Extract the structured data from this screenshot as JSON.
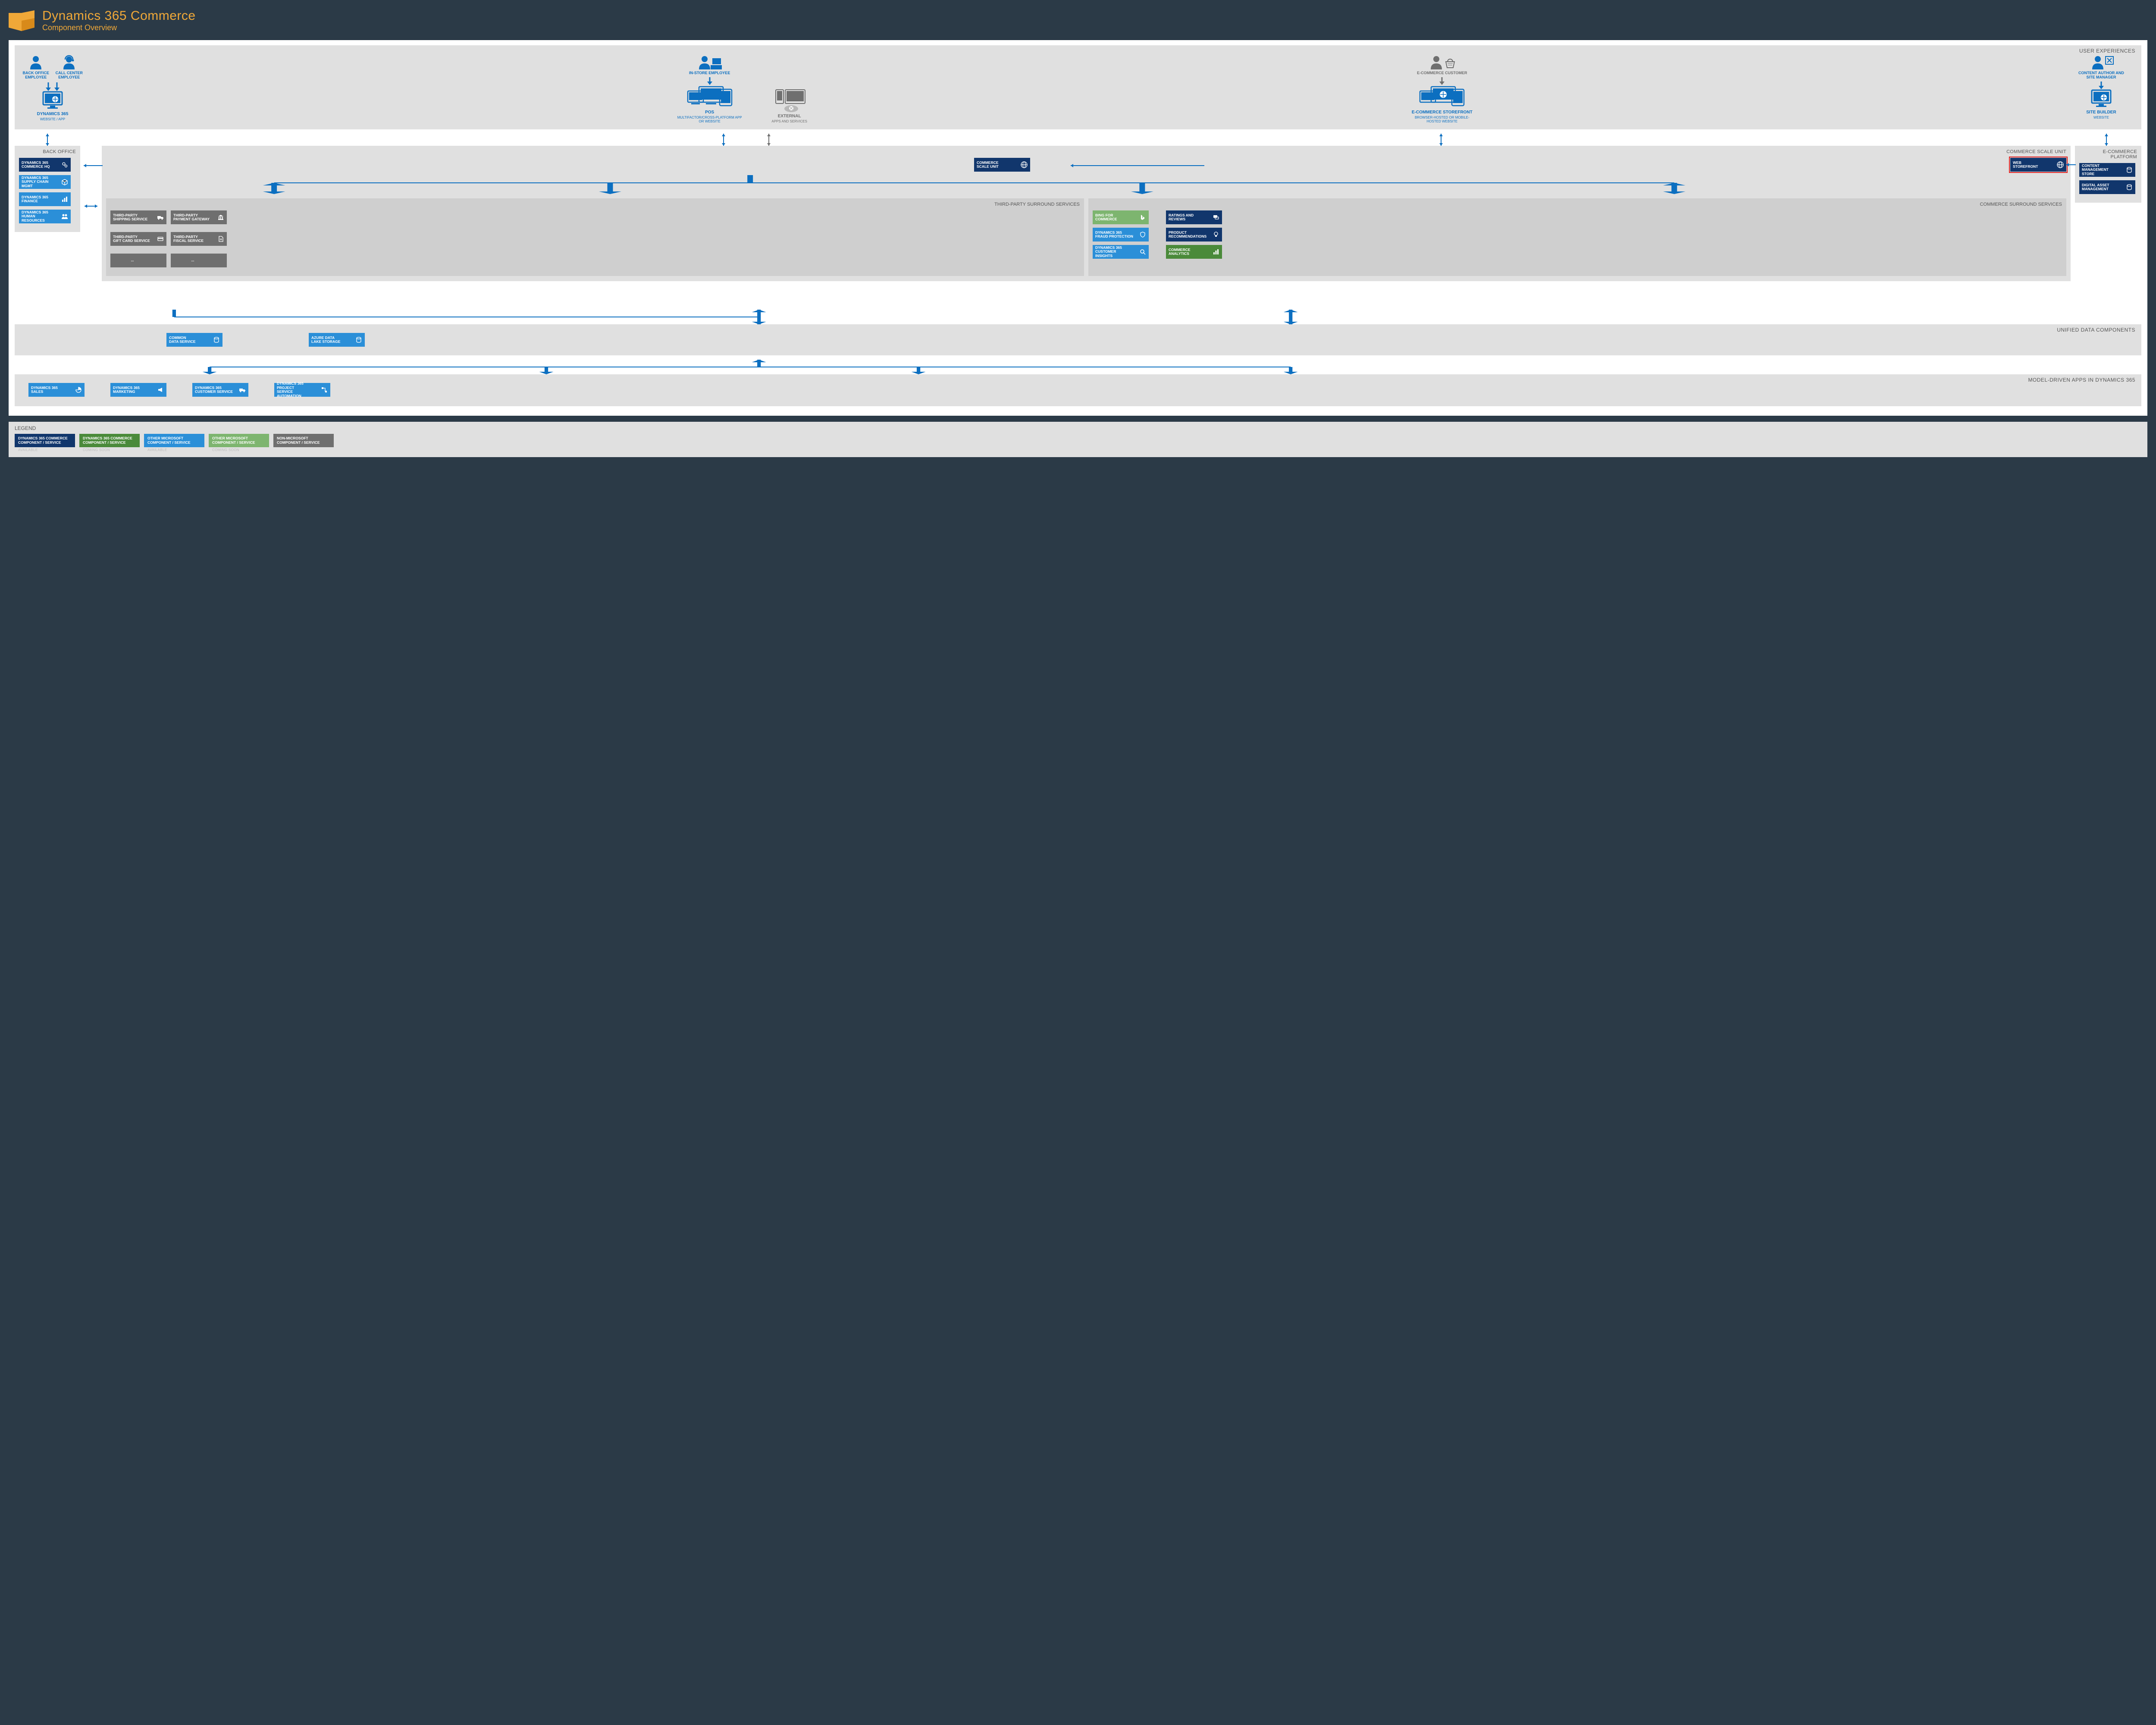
{
  "colors": {
    "page_bg": "#2b3a47",
    "canvas_bg": "#ffffff",
    "section_bg": "#e0e0e0",
    "subsection_bg": "#cfcfcf",
    "title": "#f0a838",
    "brand_blue": "#0c6fc0",
    "persona_gray": "#6f6f6f",
    "card_navy": "#11366c",
    "card_blue": "#2b8fd8",
    "card_green_dark": "#4a8a3a",
    "card_green_light": "#7db56f",
    "card_gray": "#6f6f6f",
    "arrow_blue": "#0c6fc0",
    "arrow_gray": "#6f6f6f",
    "highlight": "#e02020"
  },
  "header": {
    "title": "Dynamics 365 Commerce",
    "subtitle": "Component Overview"
  },
  "sections": {
    "ux": "USER EXPERIENCES",
    "backoffice": "BACK OFFICE",
    "csu": "COMMERCE SCALE UNIT",
    "ecom": "E-COMMERCE PLATFORM",
    "thirdparty": "THIRD-PARTY SURROUND SERVICES",
    "commerce_surround": "COMMERCE SURROUND SERVICES",
    "udc": "UNIFIED DATA COMPONENTS",
    "mda": "MODEL-DRIVEN APPS IN DYNAMICS 365"
  },
  "personas": {
    "backoffice": {
      "label": "BACK OFFICE EMPLOYEE"
    },
    "callcenter": {
      "label": "CALL CENTER EMPLOYEE"
    },
    "instore": {
      "label": "IN-STORE EMPLOYEE"
    },
    "external": {
      "title": "EXTERNAL",
      "sub": "APPS AND SERVICES"
    },
    "ecom_customer": {
      "label": "E-COMMERCE CUSTOMER"
    },
    "content_author": {
      "label": "CONTENT AUTHOR AND SITE MANAGER"
    }
  },
  "devices": {
    "d365": {
      "title": "DYNAMICS 365",
      "sub": "WEBSITE / APP"
    },
    "pos": {
      "title": "POS",
      "sub": "MULTIFACTOR/CROSS-PLATFORM APP OR WEBSITE"
    },
    "storefront": {
      "title": "E-COMMERCE STOREFRONT",
      "sub": "BROWSER-HOSTED OR MOBILE-HOSTED WEBSITE"
    },
    "sitebuilder": {
      "title": "SITE BUILDER",
      "sub": "WEBSITE"
    }
  },
  "backoffice_cards": [
    {
      "l1": "DYNAMICS 365",
      "l2": "COMMERCE HQ",
      "color": "card_navy",
      "icon": "gears"
    },
    {
      "l1": "DYNAMICS 365",
      "l2": "SUPPLY CHAIN MGMT",
      "color": "card_blue",
      "icon": "box"
    },
    {
      "l1": "DYNAMICS 365",
      "l2": "FINANCE",
      "color": "card_blue",
      "icon": "chart"
    },
    {
      "l1": "DYNAMICS 365",
      "l2": "HUMAN RESOURCES",
      "color": "card_blue",
      "icon": "people"
    }
  ],
  "csu_card": {
    "l1": "COMMERCE",
    "l2": "SCALE UNIT",
    "color": "card_navy",
    "icon": "globe"
  },
  "web_storefront": {
    "l1": "WEB",
    "l2": "STOREFRONT",
    "color": "card_navy",
    "icon": "globe",
    "highlight": true
  },
  "ecom_platform": [
    {
      "l1": "CONTENT",
      "l2": "MANAGEMENT STORE",
      "color": "card_navy",
      "icon": "db"
    },
    {
      "l1": "DIGITAL ASSET",
      "l2": "MANAGEMENT",
      "color": "card_navy",
      "icon": "db"
    }
  ],
  "thirdparty": [
    {
      "l1": "THIRD-PARTY",
      "l2": "SHIPPING SERVICE",
      "color": "card_gray",
      "icon": "truck"
    },
    {
      "l1": "THIRD-PARTY",
      "l2": "PAYMENT GATEWAY",
      "color": "card_gray",
      "icon": "bank"
    },
    {
      "l1": "THIRD-PARTY",
      "l2": "GIFT CARD SERVICE",
      "color": "card_gray",
      "icon": "card"
    },
    {
      "l1": "THIRD-PARTY",
      "l2": "FISCAL SERVICE",
      "color": "card_gray",
      "icon": "doc"
    },
    {
      "l1": "...",
      "l2": "",
      "color": "card_gray",
      "icon": ""
    },
    {
      "l1": "...",
      "l2": "",
      "color": "card_gray",
      "icon": ""
    }
  ],
  "commerce_surround_left": [
    {
      "l1": "BING FOR",
      "l2": "COMMERCE",
      "color": "card_green_light",
      "icon": "bing"
    },
    {
      "l1": "DYNAMICS 365",
      "l2": "FRAUD PROTECTION",
      "color": "card_blue",
      "icon": "shield"
    },
    {
      "l1": "DYNAMICS 365",
      "l2": "CUSTOMER INSIGHTS",
      "color": "card_blue",
      "icon": "search"
    }
  ],
  "commerce_surround_right": [
    {
      "l1": "RATINGS AND",
      "l2": "REVIEWS",
      "color": "card_navy",
      "icon": "chat"
    },
    {
      "l1": "PRODUCT",
      "l2": "RECOMMENDATIONS",
      "color": "card_navy",
      "icon": "bulb"
    },
    {
      "l1": "COMMERCE",
      "l2": "ANALYTICS",
      "color": "card_green_dark",
      "icon": "chart"
    }
  ],
  "udc": [
    {
      "l1": "COMMON",
      "l2": "DATA SERVICE",
      "color": "card_blue",
      "icon": "db"
    },
    {
      "l1": "AZURE DATA",
      "l2": "LAKE STORAGE",
      "color": "card_blue",
      "icon": "db"
    }
  ],
  "mda": [
    {
      "l1": "DYNAMICS 365",
      "l2": "SALES",
      "color": "card_blue",
      "icon": "pie"
    },
    {
      "l1": "DYNAMICS 365",
      "l2": "MARKETING",
      "color": "card_blue",
      "icon": "mega"
    },
    {
      "l1": "DYNAMICS 365",
      "l2": "CUSTOMER SERVICE",
      "color": "card_blue",
      "icon": "truck"
    },
    {
      "l1": "DYNAMICS 365 PROJECT",
      "l2": "SERVICE AUTOMATION",
      "color": "card_blue",
      "icon": "flow"
    }
  ],
  "legend": {
    "title": "LEGEND",
    "items": [
      {
        "l1": "DYNAMICS 365 COMMERCE",
        "l2": "COMPONENT / SERVICE",
        "status": "AVAILABLE",
        "color": "card_navy"
      },
      {
        "l1": "DYNAMICS 365 COMMERCE",
        "l2": "COMPONENT / SERVICE",
        "status": "COMING SOON",
        "color": "card_green_dark"
      },
      {
        "l1": "OTHER MICROSOFT",
        "l2": "COMPONENT / SERVICE",
        "status": "AVAILABLE",
        "color": "card_blue"
      },
      {
        "l1": "OTHER MICROSOFT",
        "l2": "COMPONENT / SERVICE",
        "status": "COMING SOON",
        "color": "card_green_light"
      },
      {
        "l1": "NON-MICROSOFT",
        "l2": "COMPONENT / SERVICE",
        "status": "",
        "color": "card_gray"
      }
    ]
  }
}
